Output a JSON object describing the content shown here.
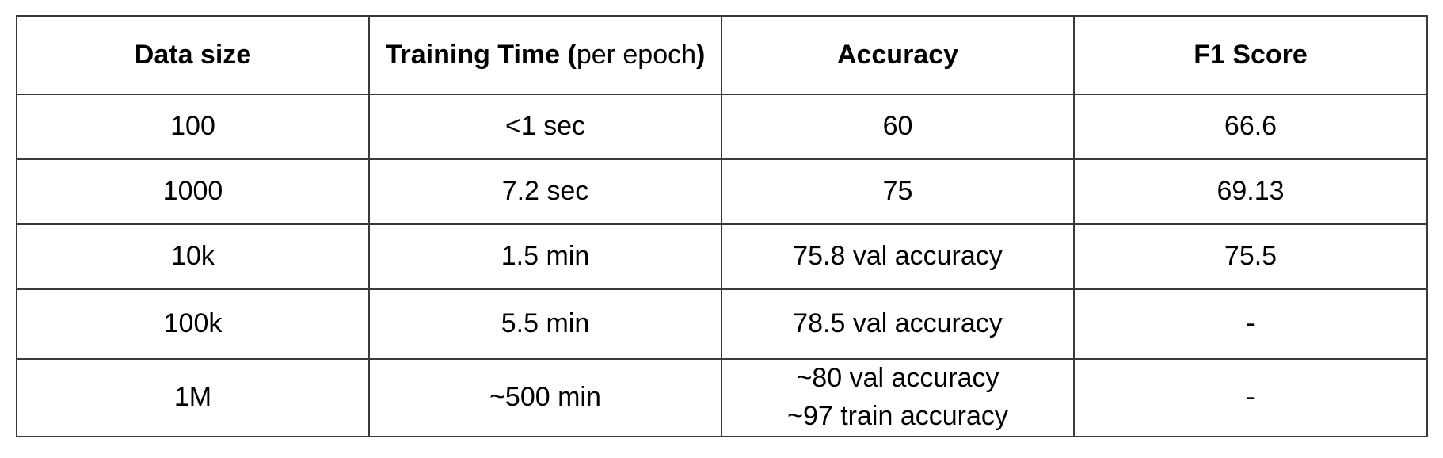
{
  "table": {
    "headers": {
      "data_size": "Data size",
      "training_time_bold_open": "Training Time (",
      "training_time_normal": "per epoch",
      "training_time_bold_close": ")",
      "accuracy": "Accuracy",
      "f1_score": "F1 Score"
    },
    "rows": [
      {
        "data_size": "100",
        "training_time": "<1 sec",
        "accuracy_line1": "60",
        "accuracy_line2": "",
        "f1_score": "66.6"
      },
      {
        "data_size": "1000",
        "training_time": "7.2 sec",
        "accuracy_line1": "75",
        "accuracy_line2": "",
        "f1_score": "69.13"
      },
      {
        "data_size": "10k",
        "training_time": "1.5 min",
        "accuracy_line1": "75.8 val accuracy",
        "accuracy_line2": "",
        "f1_score": "75.5"
      },
      {
        "data_size": "100k",
        "training_time": "5.5 min",
        "accuracy_line1": "78.5 val accuracy",
        "accuracy_line2": "",
        "f1_score": "-"
      },
      {
        "data_size": "1M",
        "training_time": "~500 min",
        "accuracy_line1": "~80 val accuracy",
        "accuracy_line2": "~97 train accuracy",
        "f1_score": "-"
      }
    ]
  }
}
